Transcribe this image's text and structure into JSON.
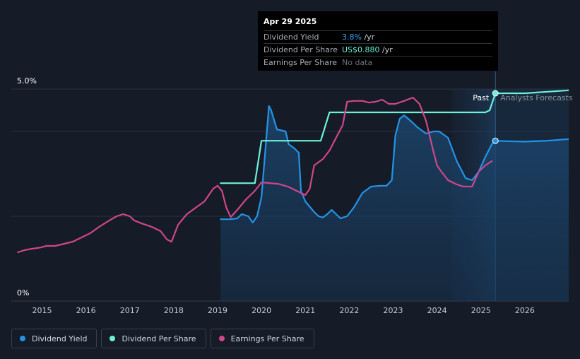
{
  "chart_data": {
    "type": "line",
    "x_axis": {
      "ticks": [
        "2015",
        "2016",
        "2017",
        "2018",
        "2019",
        "2020",
        "2021",
        "2022",
        "2023",
        "2024",
        "2025",
        "2026"
      ],
      "range": [
        2014.3,
        2027.0
      ]
    },
    "y_axis": {
      "ticks": [
        "0%",
        "5.0%"
      ],
      "range": [
        0,
        5.0
      ],
      "unit": "%"
    },
    "grid": true,
    "legend_placement": "bottom-left",
    "regions": {
      "past_label": "Past",
      "forecast_label": "Analysts Forecasts",
      "divider_x": 2025.33,
      "shade_start_x": 2024.33
    },
    "series": [
      {
        "name": "Dividend Yield",
        "color": "#2394e8",
        "area": true,
        "points": [
          [
            2019.07,
            1.93
          ],
          [
            2019.3,
            1.93
          ],
          [
            2019.45,
            1.95
          ],
          [
            2019.55,
            2.05
          ],
          [
            2019.7,
            2.0
          ],
          [
            2019.8,
            1.85
          ],
          [
            2019.9,
            2.0
          ],
          [
            2020.0,
            2.45
          ],
          [
            2020.1,
            3.7
          ],
          [
            2020.17,
            4.6
          ],
          [
            2020.22,
            4.5
          ],
          [
            2020.35,
            4.05
          ],
          [
            2020.55,
            4.0
          ],
          [
            2020.62,
            3.7
          ],
          [
            2020.75,
            3.6
          ],
          [
            2020.85,
            3.5
          ],
          [
            2020.9,
            2.6
          ],
          [
            2021.0,
            2.35
          ],
          [
            2021.2,
            2.1
          ],
          [
            2021.3,
            2.0
          ],
          [
            2021.4,
            1.97
          ],
          [
            2021.5,
            2.05
          ],
          [
            2021.6,
            2.15
          ],
          [
            2021.7,
            2.05
          ],
          [
            2021.8,
            1.95
          ],
          [
            2021.95,
            2.0
          ],
          [
            2022.1,
            2.2
          ],
          [
            2022.3,
            2.55
          ],
          [
            2022.5,
            2.7
          ],
          [
            2022.7,
            2.72
          ],
          [
            2022.85,
            2.72
          ],
          [
            2022.97,
            2.85
          ],
          [
            2023.05,
            3.9
          ],
          [
            2023.15,
            4.3
          ],
          [
            2023.25,
            4.38
          ],
          [
            2023.4,
            4.25
          ],
          [
            2023.55,
            4.1
          ],
          [
            2023.75,
            3.95
          ],
          [
            2023.92,
            4.0
          ],
          [
            2024.05,
            4.0
          ],
          [
            2024.25,
            3.85
          ],
          [
            2024.45,
            3.3
          ],
          [
            2024.65,
            2.9
          ],
          [
            2024.8,
            2.85
          ],
          [
            2024.95,
            3.05
          ],
          [
            2025.1,
            3.4
          ],
          [
            2025.25,
            3.7
          ],
          [
            2025.33,
            3.78
          ]
        ],
        "forecast_points": [
          [
            2025.33,
            3.78
          ],
          [
            2025.6,
            3.77
          ],
          [
            2026.0,
            3.76
          ],
          [
            2026.5,
            3.78
          ],
          [
            2027.0,
            3.82
          ]
        ]
      },
      {
        "name": "Dividend Per Share",
        "color": "#6df0d8",
        "area": false,
        "points": [
          [
            2019.07,
            2.78
          ],
          [
            2019.85,
            2.78
          ],
          [
            2020.0,
            3.78
          ],
          [
            2021.35,
            3.78
          ],
          [
            2021.55,
            4.45
          ],
          [
            2024.4,
            4.45
          ],
          [
            2025.1,
            4.45
          ],
          [
            2025.2,
            4.5
          ],
          [
            2025.33,
            4.9
          ]
        ],
        "forecast_points": [
          [
            2025.33,
            4.9
          ],
          [
            2026.0,
            4.9
          ],
          [
            2027.0,
            4.97
          ]
        ]
      },
      {
        "name": "Earnings Per Share",
        "color": "#d0468b",
        "area": false,
        "points": [
          [
            2014.45,
            1.15
          ],
          [
            2014.6,
            1.2
          ],
          [
            2014.75,
            1.23
          ],
          [
            2014.95,
            1.26
          ],
          [
            2015.1,
            1.3
          ],
          [
            2015.3,
            1.3
          ],
          [
            2015.5,
            1.35
          ],
          [
            2015.7,
            1.4
          ],
          [
            2015.9,
            1.5
          ],
          [
            2016.1,
            1.6
          ],
          [
            2016.3,
            1.75
          ],
          [
            2016.5,
            1.88
          ],
          [
            2016.7,
            2.0
          ],
          [
            2016.85,
            2.05
          ],
          [
            2017.0,
            2.0
          ],
          [
            2017.1,
            1.9
          ],
          [
            2017.3,
            1.82
          ],
          [
            2017.5,
            1.75
          ],
          [
            2017.7,
            1.65
          ],
          [
            2017.85,
            1.45
          ],
          [
            2017.95,
            1.4
          ],
          [
            2018.1,
            1.8
          ],
          [
            2018.3,
            2.05
          ],
          [
            2018.5,
            2.2
          ],
          [
            2018.7,
            2.35
          ],
          [
            2018.9,
            2.65
          ],
          [
            2019.0,
            2.72
          ],
          [
            2019.1,
            2.6
          ],
          [
            2019.2,
            2.2
          ],
          [
            2019.3,
            1.98
          ],
          [
            2019.45,
            2.15
          ],
          [
            2019.65,
            2.4
          ],
          [
            2019.85,
            2.6
          ],
          [
            2020.0,
            2.8
          ],
          [
            2020.2,
            2.78
          ],
          [
            2020.4,
            2.76
          ],
          [
            2020.6,
            2.7
          ],
          [
            2020.8,
            2.6
          ],
          [
            2021.0,
            2.5
          ],
          [
            2021.1,
            2.65
          ],
          [
            2021.2,
            3.2
          ],
          [
            2021.4,
            3.35
          ],
          [
            2021.55,
            3.55
          ],
          [
            2021.7,
            3.85
          ],
          [
            2021.85,
            4.15
          ],
          [
            2021.95,
            4.7
          ],
          [
            2022.1,
            4.72
          ],
          [
            2022.3,
            4.72
          ],
          [
            2022.45,
            4.68
          ],
          [
            2022.6,
            4.7
          ],
          [
            2022.75,
            4.75
          ],
          [
            2022.9,
            4.65
          ],
          [
            2023.05,
            4.65
          ],
          [
            2023.25,
            4.72
          ],
          [
            2023.45,
            4.8
          ],
          [
            2023.6,
            4.65
          ],
          [
            2023.75,
            4.25
          ],
          [
            2023.9,
            3.6
          ],
          [
            2024.0,
            3.2
          ],
          [
            2024.1,
            3.05
          ],
          [
            2024.25,
            2.85
          ],
          [
            2024.45,
            2.75
          ],
          [
            2024.6,
            2.7
          ],
          [
            2024.8,
            2.7
          ],
          [
            2024.95,
            3.05
          ],
          [
            2025.1,
            3.2
          ],
          [
            2025.25,
            3.3
          ]
        ]
      }
    ]
  },
  "tooltip": {
    "date": "Apr 29 2025",
    "rows": [
      {
        "label": "Dividend Yield",
        "value": "3.8%",
        "suffix": " /yr",
        "style": "hl-blue"
      },
      {
        "label": "Dividend Per Share",
        "value": "US$0.880",
        "suffix": " /yr",
        "style": "hl-teal"
      },
      {
        "label": "Earnings Per Share",
        "value": "No data",
        "suffix": "",
        "style": "muted"
      }
    ]
  },
  "legend": [
    {
      "label": "Dividend Yield",
      "color": "#2394e8"
    },
    {
      "label": "Dividend Per Share",
      "color": "#6df0d8"
    },
    {
      "label": "Earnings Per Share",
      "color": "#d0468b"
    }
  ]
}
